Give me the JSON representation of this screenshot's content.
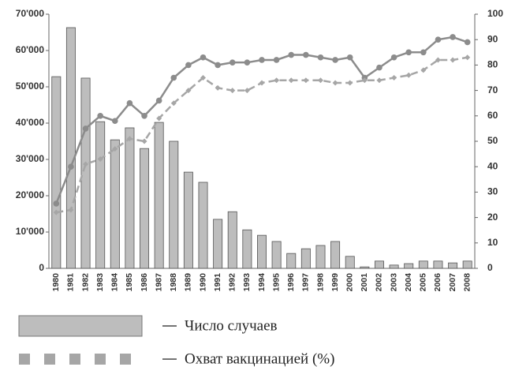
{
  "chart_data": {
    "type": "bar",
    "categories": [
      "1980",
      "1981",
      "1982",
      "1983",
      "1984",
      "1985",
      "1986",
      "1987",
      "1988",
      "1989",
      "1990",
      "1991",
      "1992",
      "1993",
      "1994",
      "1995",
      "1996",
      "1997",
      "1998",
      "1999",
      "2000",
      "2001",
      "2002",
      "2003",
      "2004",
      "2005",
      "2006",
      "2007",
      "2008"
    ],
    "series": [
      {
        "name": "Число случаев",
        "type": "bar",
        "color": "#bdbdbd",
        "values": [
          52800,
          66300,
          52400,
          40400,
          35400,
          38700,
          33000,
          40200,
          35000,
          26500,
          23700,
          13500,
          15600,
          10600,
          9100,
          7400,
          4100,
          5400,
          6300,
          7400,
          3300,
          400,
          2000,
          900,
          1300,
          2000,
          2000,
          1500,
          2000
        ]
      },
      {
        "type": "line",
        "color": "#8c8c8c",
        "axis": "y2",
        "values": [
          25.5,
          40,
          55,
          60,
          58,
          65,
          60,
          66,
          75,
          80,
          83,
          80,
          81,
          81,
          82,
          82,
          84,
          84,
          83,
          82,
          83,
          75,
          79,
          83,
          85,
          85,
          90,
          91,
          89
        ]
      },
      {
        "name": "Охват вакцинацией (%)",
        "type": "line",
        "dashed": true,
        "color": "#a6a6a6",
        "axis": "y2",
        "values": [
          22,
          23,
          41,
          43,
          47,
          51,
          50,
          59,
          65,
          70,
          75,
          71,
          70,
          70,
          73,
          74,
          74,
          74,
          74,
          73,
          73,
          74,
          74,
          75,
          76,
          78,
          82,
          82,
          83
        ]
      }
    ],
    "ylim": [
      0,
      70000
    ],
    "yticks": [
      0,
      {
        "value": 10000,
        "label": "10'000"
      },
      {
        "value": 20000,
        "label": "20'000"
      },
      {
        "value": 30000,
        "label": "30'000"
      },
      {
        "value": 40000,
        "label": "40'000"
      },
      {
        "value": 50000,
        "label": "50'000"
      },
      {
        "value": 60000,
        "label": "60'000"
      },
      {
        "value": 70000,
        "label": "70'000"
      }
    ],
    "y2lim": [
      0,
      100
    ],
    "y2ticks": [
      0,
      10,
      20,
      30,
      40,
      50,
      60,
      70,
      80,
      90,
      100
    ]
  }
}
